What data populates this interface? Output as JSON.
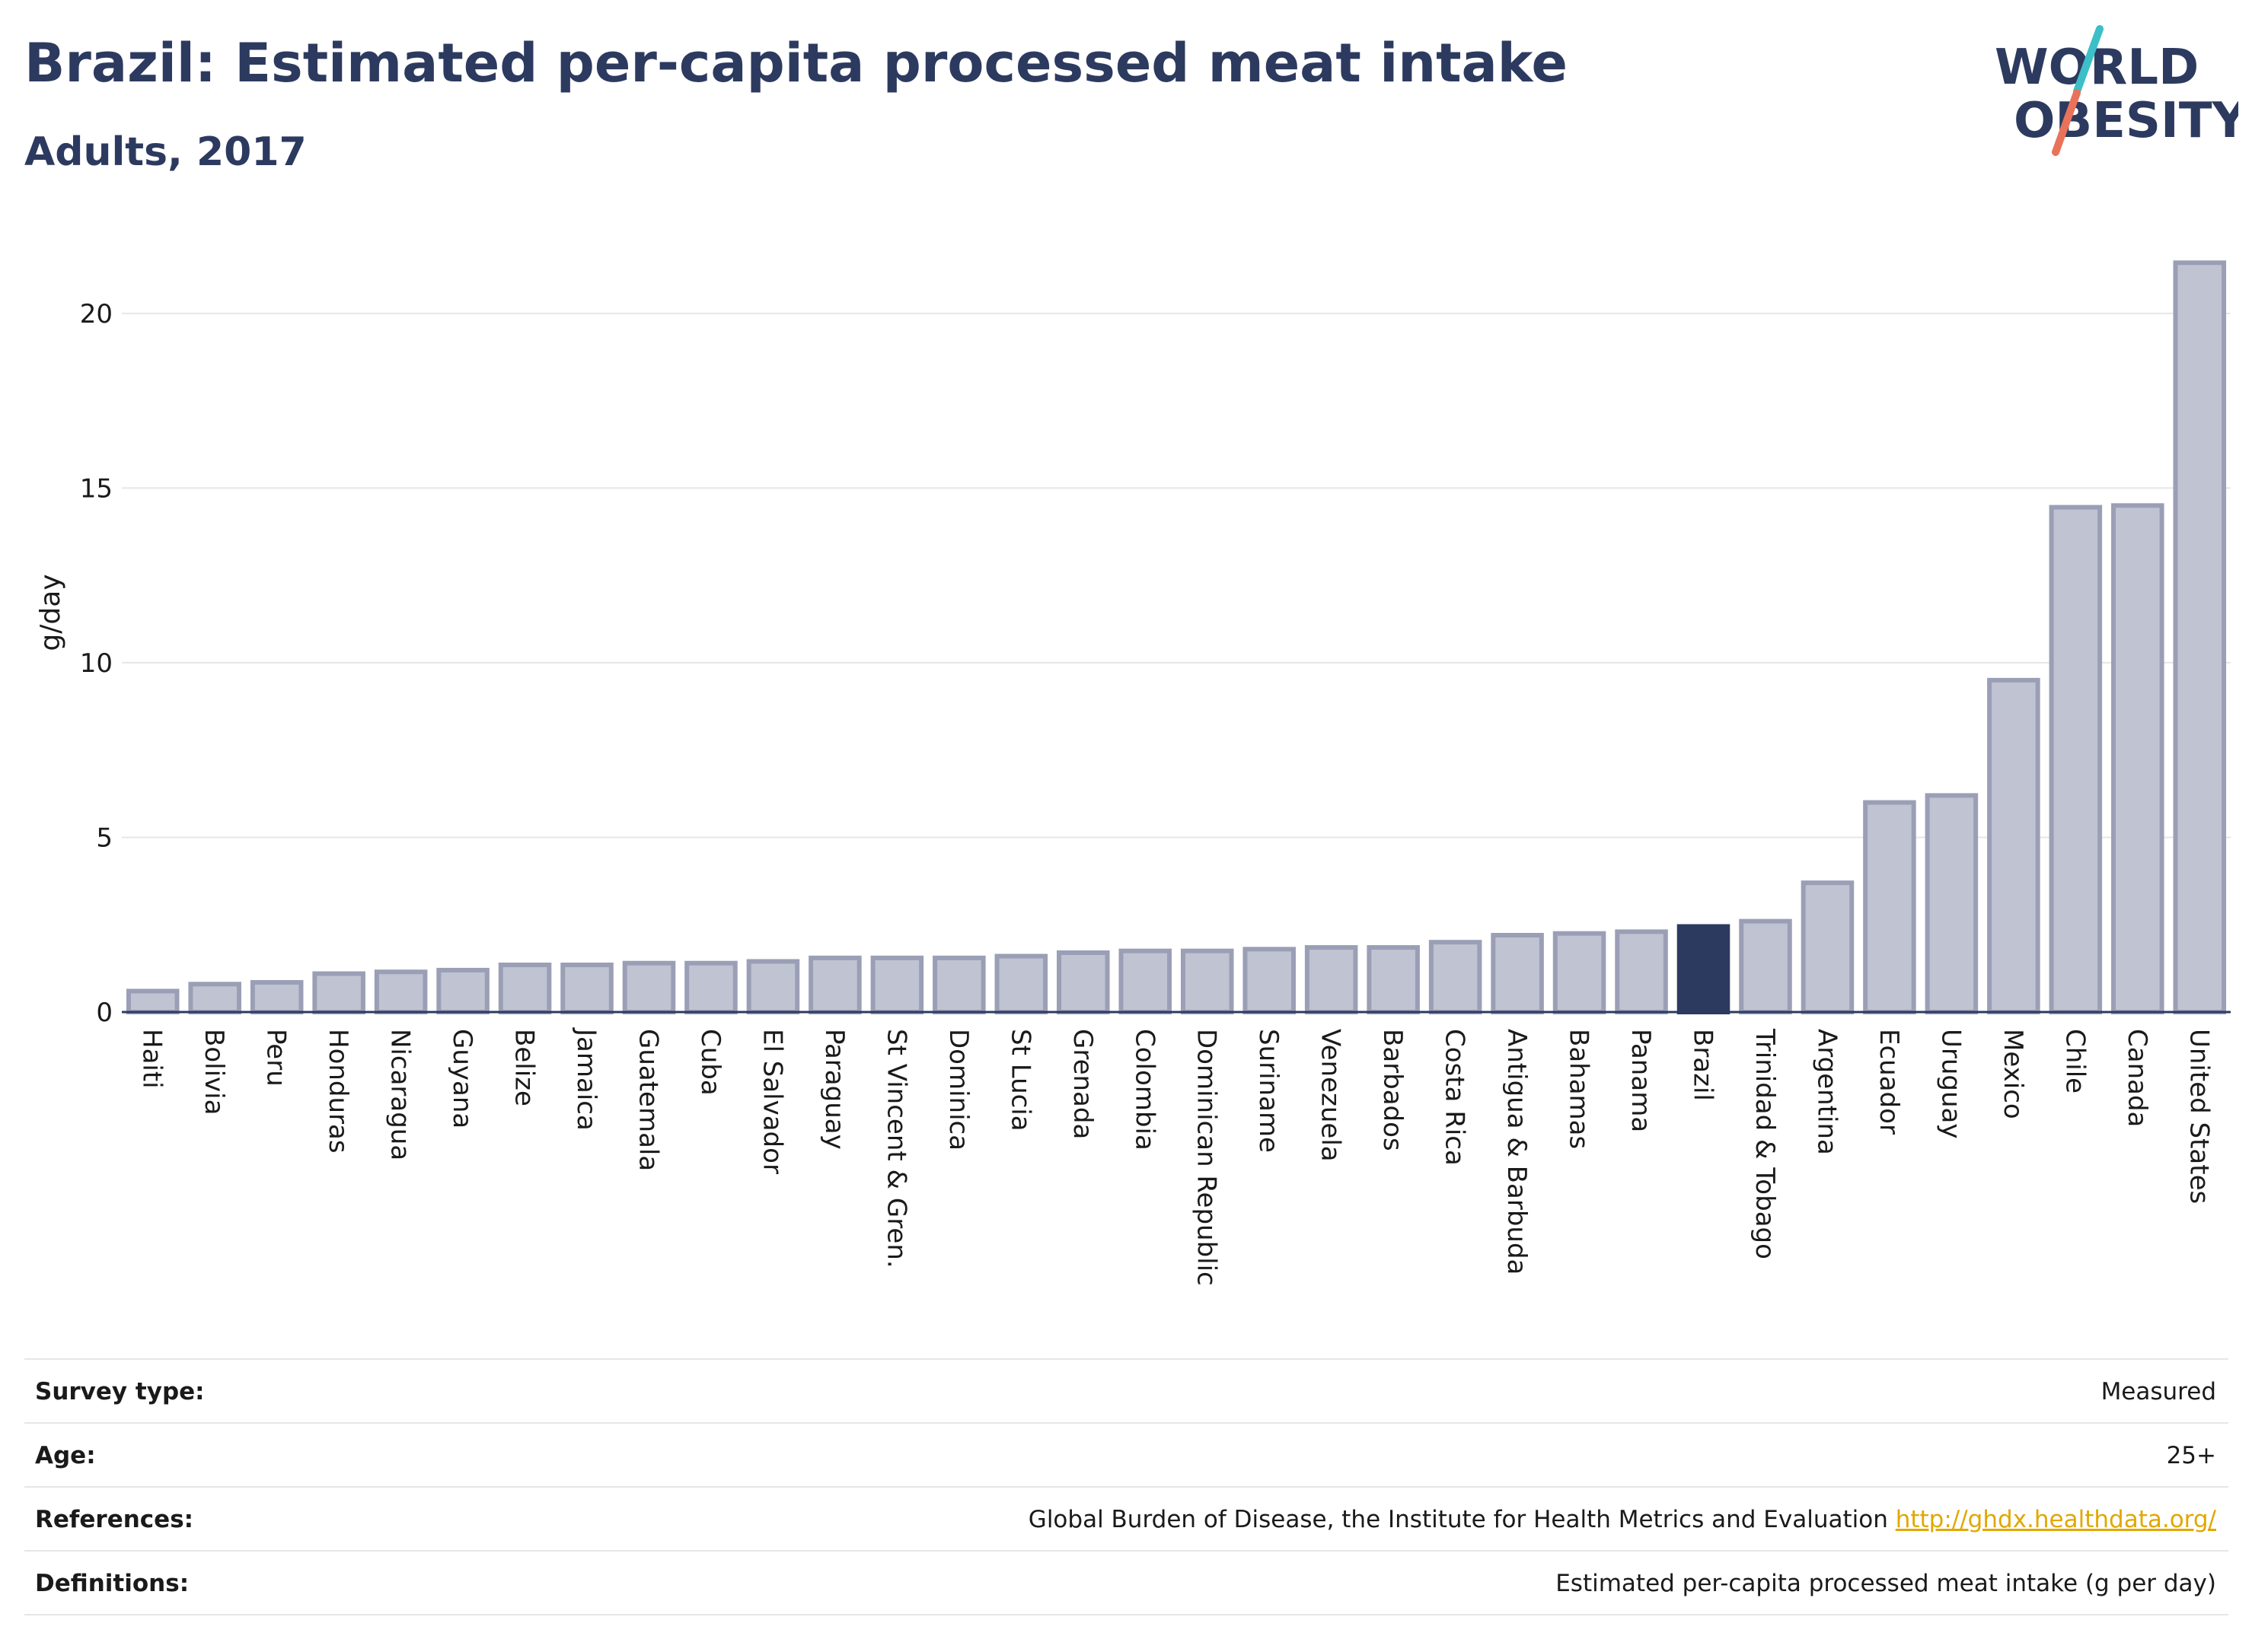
{
  "header": {
    "title": "Brazil: Estimated per-capita processed meat intake",
    "subtitle": "Adults, 2017"
  },
  "logo": {
    "line1": "WORLD",
    "line2": "OBESITY",
    "accent_blue": "#3cbfc6",
    "accent_red": "#e8735a"
  },
  "colors": {
    "bar": "#c0c3d1",
    "bar_outline": "#9a9fb6",
    "highlight": "#2d3a5f",
    "grid": "#e6e6e6"
  },
  "chart_data": {
    "type": "bar",
    "ylabel": "g/day",
    "ylim": [
      0,
      22
    ],
    "yticks": [
      0,
      5,
      10,
      15,
      20
    ],
    "highlight": "Brazil",
    "grid": true,
    "categories": [
      "Haiti",
      "Bolivia",
      "Peru",
      "Honduras",
      "Nicaragua",
      "Guyana",
      "Belize",
      "Jamaica",
      "Guatemala",
      "Cuba",
      "El Salvador",
      "Paraguay",
      "St Vincent & Gren.",
      "Dominica",
      "St Lucia",
      "Grenada",
      "Colombia",
      "Dominican Republic",
      "Suriname",
      "Venezuela",
      "Barbados",
      "Costa Rica",
      "Antigua & Barbuda",
      "Bahamas",
      "Panama",
      "Brazil",
      "Trinidad & Tobago",
      "Argentina",
      "Ecuador",
      "Uruguay",
      "Mexico",
      "Chile",
      "Canada",
      "United States"
    ],
    "values": [
      0.6,
      0.8,
      0.85,
      1.1,
      1.15,
      1.2,
      1.35,
      1.35,
      1.4,
      1.4,
      1.45,
      1.55,
      1.55,
      1.55,
      1.6,
      1.7,
      1.75,
      1.75,
      1.8,
      1.85,
      1.85,
      2.0,
      2.2,
      2.25,
      2.3,
      2.45,
      2.6,
      3.7,
      6.0,
      6.2,
      9.5,
      14.45,
      14.5,
      21.45
    ]
  },
  "info": [
    {
      "label": "Survey type:",
      "value": "Measured"
    },
    {
      "label": "Age:",
      "value": "25+"
    },
    {
      "label": "References:",
      "value": "Global Burden of Disease, the Institute for Health Metrics and Evaluation",
      "link": "http://ghdx.healthdata.org/"
    },
    {
      "label": "Definitions:",
      "value": "Estimated per-capita processed meat intake (g per day)"
    }
  ]
}
